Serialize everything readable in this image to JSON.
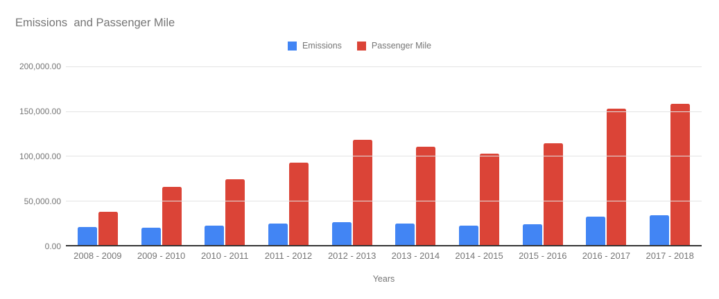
{
  "title": "Emissions  and Passenger Mile",
  "legend": {
    "items": [
      {
        "label": "Emissions",
        "color": "#4285F4"
      },
      {
        "label": "Passenger Mile",
        "color": "#DB4437"
      }
    ]
  },
  "axes": {
    "x_title": "Years",
    "y_tick_labels": [
      "0.00",
      "50,000.00",
      "100,000.00",
      "150,000.00",
      "200,000.00"
    ]
  },
  "colors": {
    "emissions": "#4285F4",
    "passenger_mile": "#DB4437",
    "title_text": "#757575",
    "axis_text": "#757575",
    "gridline": "#e3e3e3",
    "axis_line": "#333333"
  },
  "chart_data": {
    "type": "bar",
    "title": "Emissions  and Passenger Mile",
    "xlabel": "Years",
    "ylabel": "",
    "ylim": [
      0,
      200000
    ],
    "grid": true,
    "legend_position": "top-center",
    "categories": [
      "2008 - 2009",
      "2009 - 2010",
      "2010 - 2011",
      "2011 - 2012",
      "2012 - 2013",
      "2013 - 2014",
      "2014 - 2015",
      "2015 - 2016",
      "2016 - 2017",
      "2017 - 2018"
    ],
    "series": [
      {
        "name": "Emissions",
        "color": "#4285F4",
        "values": [
          20000,
          19500,
          21500,
          24000,
          25500,
          24000,
          22000,
          23000,
          31500,
          33500
        ]
      },
      {
        "name": "Passenger Mile",
        "color": "#DB4437",
        "values": [
          37500,
          65000,
          74000,
          92000,
          118000,
          110000,
          102000,
          114000,
          152500,
          158500
        ]
      }
    ]
  }
}
